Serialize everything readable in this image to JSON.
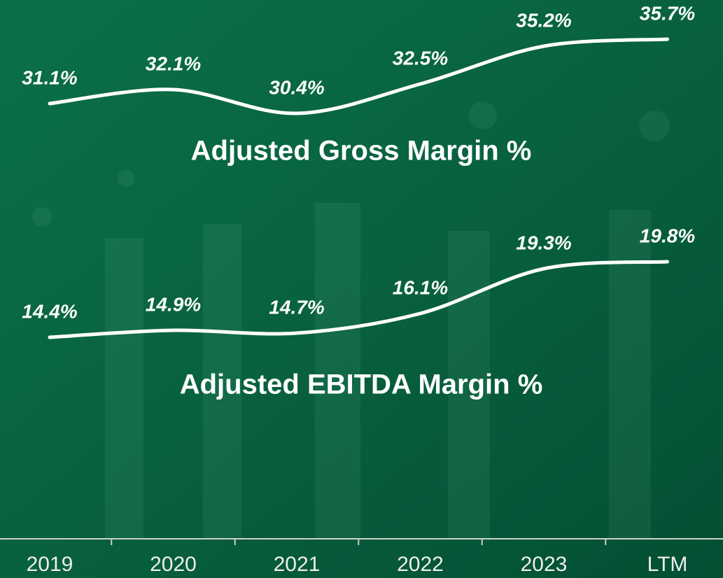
{
  "chart_data": {
    "type": "line",
    "categories": [
      "2019",
      "2020",
      "2021",
      "2022",
      "2023",
      "LTM"
    ],
    "series": [
      {
        "name": "Adjusted Gross Margin %",
        "color": "#ffffff",
        "values": [
          31.1,
          32.1,
          30.4,
          32.5,
          35.2,
          35.7
        ],
        "value_labels": [
          "31.1%",
          "32.1%",
          "30.4%",
          "32.5%",
          "35.2%",
          "35.7%"
        ]
      },
      {
        "name": "Adjusted EBITDA Margin %",
        "color": "#ffffff",
        "values": [
          14.4,
          14.9,
          14.7,
          16.1,
          19.3,
          19.8
        ],
        "value_labels": [
          "14.4%",
          "14.9%",
          "14.7%",
          "16.1%",
          "19.3%",
          "19.8%"
        ]
      }
    ],
    "ylim": [
      0,
      38.5
    ]
  }
}
